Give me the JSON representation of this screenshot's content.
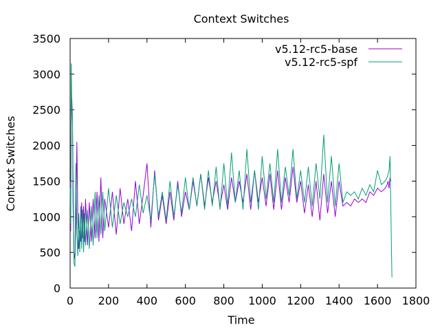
{
  "chart_data": {
    "type": "line",
    "title": "Context Switches",
    "xlabel": "Time",
    "ylabel": "Context Switches",
    "xlim": [
      0,
      1800
    ],
    "ylim": [
      0,
      3500
    ],
    "xticks": [
      0,
      200,
      400,
      600,
      800,
      1000,
      1200,
      1400,
      1600,
      1800
    ],
    "yticks": [
      0,
      500,
      1000,
      1500,
      2000,
      2500,
      3000,
      3500
    ],
    "legend_position": "top-right",
    "grid": false,
    "series": [
      {
        "name": "v5.12-rc5-base",
        "color": "#9400d3",
        "x": [
          0,
          3,
          6,
          9,
          12,
          15,
          20,
          25,
          30,
          35,
          40,
          45,
          50,
          55,
          60,
          65,
          70,
          75,
          80,
          90,
          100,
          110,
          120,
          130,
          140,
          150,
          160,
          170,
          180,
          200,
          220,
          240,
          260,
          280,
          300,
          320,
          340,
          360,
          380,
          400,
          420,
          440,
          460,
          480,
          500,
          520,
          540,
          560,
          580,
          600,
          620,
          640,
          660,
          680,
          700,
          720,
          740,
          760,
          780,
          800,
          820,
          840,
          860,
          880,
          900,
          920,
          940,
          960,
          980,
          1000,
          1020,
          1040,
          1060,
          1080,
          1100,
          1120,
          1140,
          1160,
          1180,
          1200,
          1220,
          1240,
          1260,
          1280,
          1300,
          1320,
          1340,
          1360,
          1380,
          1400,
          1420,
          1440,
          1460,
          1480,
          1500,
          1520,
          1540,
          1560,
          1580,
          1600,
          1620,
          1640,
          1650,
          1655,
          1660,
          1665,
          1670
        ],
        "y": [
          1500,
          800,
          2500,
          2650,
          2400,
          1200,
          500,
          400,
          900,
          2050,
          1000,
          550,
          800,
          650,
          1200,
          700,
          1150,
          650,
          1250,
          600,
          1200,
          650,
          1250,
          700,
          1350,
          650,
          1550,
          700,
          1250,
          850,
          1350,
          750,
          1400,
          900,
          1250,
          800,
          1500,
          900,
          1300,
          1750,
          850,
          1650,
          950,
          1300,
          900,
          1350,
          950,
          1500,
          1000,
          1350,
          1100,
          1500,
          1150,
          1600,
          1150,
          1550,
          1200,
          1500,
          1150,
          1450,
          1100,
          1550,
          1200,
          1500,
          1200,
          1600,
          1100,
          1650,
          1200,
          1550,
          1150,
          1600,
          1100,
          1650,
          1100,
          1550,
          1200,
          1700,
          1200,
          1500,
          1050,
          1450,
          1000,
          1500,
          950,
          1600,
          1050,
          1500,
          1000,
          1500,
          1150,
          1200,
          1150,
          1250,
          1200,
          1250,
          1200,
          1350,
          1300,
          1400,
          1350,
          1400,
          1450,
          1500,
          1400,
          1550,
          1500
        ]
      },
      {
        "name": "v5.12-rc5-spf",
        "color": "#009e73",
        "x": [
          0,
          3,
          6,
          9,
          12,
          15,
          20,
          25,
          30,
          35,
          40,
          45,
          50,
          55,
          60,
          65,
          70,
          75,
          80,
          90,
          100,
          110,
          120,
          130,
          140,
          150,
          160,
          170,
          180,
          200,
          220,
          240,
          260,
          280,
          300,
          320,
          340,
          360,
          380,
          400,
          420,
          440,
          460,
          480,
          500,
          520,
          540,
          560,
          580,
          600,
          620,
          640,
          660,
          680,
          700,
          720,
          740,
          760,
          780,
          800,
          820,
          840,
          860,
          880,
          900,
          920,
          940,
          960,
          980,
          1000,
          1020,
          1040,
          1060,
          1080,
          1100,
          1120,
          1140,
          1160,
          1180,
          1200,
          1220,
          1240,
          1260,
          1280,
          1300,
          1320,
          1340,
          1360,
          1380,
          1400,
          1420,
          1440,
          1460,
          1480,
          1500,
          1520,
          1540,
          1560,
          1580,
          1600,
          1620,
          1640,
          1650,
          1655,
          1660,
          1665,
          1670,
          1675
        ],
        "y": [
          1400,
          900,
          3150,
          2500,
          2350,
          1700,
          350,
          300,
          1750,
          800,
          450,
          1050,
          500,
          1150,
          550,
          1100,
          500,
          1050,
          600,
          1100,
          550,
          1150,
          600,
          1350,
          700,
          1300,
          750,
          1350,
          800,
          1400,
          850,
          1300,
          900,
          1200,
          1000,
          1250,
          1000,
          1450,
          1050,
          1300,
          950,
          1600,
          1000,
          1350,
          950,
          1500,
          1000,
          1450,
          1050,
          1550,
          1100,
          1550,
          1150,
          1600,
          1100,
          1650,
          1150,
          1700,
          1100,
          1750,
          1150,
          1900,
          1200,
          1650,
          1100,
          1950,
          1200,
          1650,
          1100,
          1850,
          1250,
          1750,
          1200,
          1950,
          1200,
          1700,
          1300,
          1950,
          1250,
          1650,
          1200,
          1700,
          1150,
          1750,
          1250,
          2150,
          1200,
          1850,
          1150,
          1750,
          1200,
          1350,
          1300,
          1350,
          1250,
          1400,
          1300,
          1450,
          1350,
          1650,
          1450,
          1500,
          1550,
          1600,
          1650,
          1850,
          1000,
          150
        ]
      }
    ]
  }
}
